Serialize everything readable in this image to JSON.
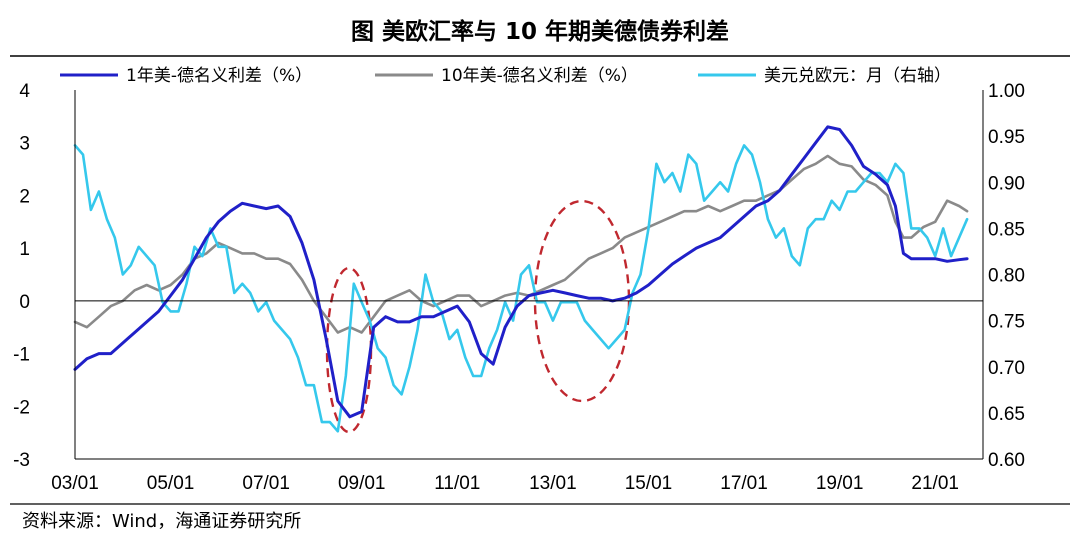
{
  "chart_data": {
    "type": "line",
    "title": "图  美欧汇率与 10 年期美德债券利差",
    "source": "资料来源：Wind，海通证券研究所",
    "x_tick_labels": [
      "03/01",
      "05/01",
      "07/01",
      "09/01",
      "11/01",
      "13/01",
      "15/01",
      "17/01",
      "19/01",
      "21/01"
    ],
    "x_range": [
      "2003-01",
      "2022-01"
    ],
    "left_axis": {
      "min": -3,
      "max": 4,
      "ticks": [
        4,
        3,
        2,
        1,
        0,
        -1,
        -2,
        -3
      ]
    },
    "right_axis": {
      "min": 0.6,
      "max": 1.0,
      "ticks": [
        "1.00",
        "0.95",
        "0.90",
        "0.85",
        "0.80",
        "0.75",
        "0.70",
        "0.65",
        "0.60"
      ]
    },
    "legend_position": "top",
    "series": [
      {
        "name": "1年美-德名义利差（%）",
        "axis": "left",
        "color": "#2020c8",
        "points": [
          [
            "2003-01",
            -1.3
          ],
          [
            "2003-04",
            -1.1
          ],
          [
            "2003-07",
            -1.0
          ],
          [
            "2003-10",
            -1.0
          ],
          [
            "2004-01",
            -0.8
          ],
          [
            "2004-04",
            -0.6
          ],
          [
            "2004-07",
            -0.4
          ],
          [
            "2004-10",
            -0.2
          ],
          [
            "2005-01",
            0.1
          ],
          [
            "2005-04",
            0.4
          ],
          [
            "2005-07",
            0.8
          ],
          [
            "2005-10",
            1.2
          ],
          [
            "2006-01",
            1.5
          ],
          [
            "2006-04",
            1.7
          ],
          [
            "2006-07",
            1.85
          ],
          [
            "2006-10",
            1.8
          ],
          [
            "2007-01",
            1.75
          ],
          [
            "2007-04",
            1.8
          ],
          [
            "2007-07",
            1.6
          ],
          [
            "2007-10",
            1.1
          ],
          [
            "2008-01",
            0.4
          ],
          [
            "2008-04",
            -0.7
          ],
          [
            "2008-07",
            -1.9
          ],
          [
            "2008-10",
            -2.2
          ],
          [
            "2009-01",
            -2.1
          ],
          [
            "2009-04",
            -0.5
          ],
          [
            "2009-07",
            -0.3
          ],
          [
            "2009-10",
            -0.4
          ],
          [
            "2010-01",
            -0.4
          ],
          [
            "2010-04",
            -0.3
          ],
          [
            "2010-07",
            -0.3
          ],
          [
            "2010-10",
            -0.2
          ],
          [
            "2011-01",
            -0.1
          ],
          [
            "2011-04",
            -0.4
          ],
          [
            "2011-07",
            -1.0
          ],
          [
            "2011-10",
            -1.2
          ],
          [
            "2012-01",
            -0.5
          ],
          [
            "2012-04",
            -0.1
          ],
          [
            "2012-07",
            0.1
          ],
          [
            "2012-10",
            0.15
          ],
          [
            "2013-01",
            0.2
          ],
          [
            "2013-04",
            0.15
          ],
          [
            "2013-07",
            0.1
          ],
          [
            "2013-10",
            0.05
          ],
          [
            "2014-01",
            0.05
          ],
          [
            "2014-04",
            0.0
          ],
          [
            "2014-07",
            0.05
          ],
          [
            "2014-10",
            0.15
          ],
          [
            "2015-01",
            0.3
          ],
          [
            "2015-04",
            0.5
          ],
          [
            "2015-07",
            0.7
          ],
          [
            "2015-10",
            0.85
          ],
          [
            "2016-01",
            1.0
          ],
          [
            "2016-04",
            1.1
          ],
          [
            "2016-07",
            1.2
          ],
          [
            "2016-10",
            1.4
          ],
          [
            "2017-01",
            1.6
          ],
          [
            "2017-04",
            1.8
          ],
          [
            "2017-07",
            1.9
          ],
          [
            "2017-10",
            2.1
          ],
          [
            "2018-01",
            2.4
          ],
          [
            "2018-04",
            2.7
          ],
          [
            "2018-07",
            3.0
          ],
          [
            "2018-10",
            3.3
          ],
          [
            "2019-01",
            3.25
          ],
          [
            "2019-04",
            2.95
          ],
          [
            "2019-07",
            2.55
          ],
          [
            "2019-10",
            2.4
          ],
          [
            "2020-01",
            2.2
          ],
          [
            "2020-03",
            1.8
          ],
          [
            "2020-05",
            0.9
          ],
          [
            "2020-07",
            0.8
          ],
          [
            "2020-10",
            0.8
          ],
          [
            "2021-01",
            0.8
          ],
          [
            "2021-04",
            0.75
          ],
          [
            "2021-07",
            0.78
          ],
          [
            "2021-09",
            0.8
          ]
        ]
      },
      {
        "name": "10年美-德名义利差（%）",
        "axis": "left",
        "color": "#8a8a8a",
        "points": [
          [
            "2003-01",
            -0.4
          ],
          [
            "2003-04",
            -0.5
          ],
          [
            "2003-07",
            -0.3
          ],
          [
            "2003-10",
            -0.1
          ],
          [
            "2004-01",
            0.0
          ],
          [
            "2004-04",
            0.2
          ],
          [
            "2004-07",
            0.3
          ],
          [
            "2004-10",
            0.2
          ],
          [
            "2005-01",
            0.3
          ],
          [
            "2005-04",
            0.5
          ],
          [
            "2005-07",
            0.8
          ],
          [
            "2005-10",
            0.9
          ],
          [
            "2006-01",
            1.1
          ],
          [
            "2006-04",
            1.0
          ],
          [
            "2006-07",
            0.9
          ],
          [
            "2006-10",
            0.9
          ],
          [
            "2007-01",
            0.8
          ],
          [
            "2007-04",
            0.8
          ],
          [
            "2007-07",
            0.7
          ],
          [
            "2007-10",
            0.4
          ],
          [
            "2008-01",
            0.0
          ],
          [
            "2008-04",
            -0.3
          ],
          [
            "2008-07",
            -0.6
          ],
          [
            "2008-10",
            -0.5
          ],
          [
            "2009-01",
            -0.6
          ],
          [
            "2009-04",
            -0.3
          ],
          [
            "2009-07",
            0.0
          ],
          [
            "2009-10",
            0.1
          ],
          [
            "2010-01",
            0.2
          ],
          [
            "2010-04",
            0.0
          ],
          [
            "2010-07",
            -0.1
          ],
          [
            "2010-10",
            0.0
          ],
          [
            "2011-01",
            0.1
          ],
          [
            "2011-04",
            0.1
          ],
          [
            "2011-07",
            -0.1
          ],
          [
            "2011-10",
            0.0
          ],
          [
            "2012-01",
            0.1
          ],
          [
            "2012-04",
            0.15
          ],
          [
            "2012-07",
            0.1
          ],
          [
            "2012-10",
            0.2
          ],
          [
            "2013-01",
            0.3
          ],
          [
            "2013-04",
            0.4
          ],
          [
            "2013-07",
            0.6
          ],
          [
            "2013-10",
            0.8
          ],
          [
            "2014-01",
            0.9
          ],
          [
            "2014-04",
            1.0
          ],
          [
            "2014-07",
            1.2
          ],
          [
            "2014-10",
            1.3
          ],
          [
            "2015-01",
            1.4
          ],
          [
            "2015-04",
            1.5
          ],
          [
            "2015-07",
            1.6
          ],
          [
            "2015-10",
            1.7
          ],
          [
            "2016-01",
            1.7
          ],
          [
            "2016-04",
            1.8
          ],
          [
            "2016-07",
            1.7
          ],
          [
            "2016-10",
            1.8
          ],
          [
            "2017-01",
            1.9
          ],
          [
            "2017-04",
            1.9
          ],
          [
            "2017-07",
            2.0
          ],
          [
            "2017-10",
            2.1
          ],
          [
            "2018-01",
            2.3
          ],
          [
            "2018-04",
            2.5
          ],
          [
            "2018-07",
            2.6
          ],
          [
            "2018-10",
            2.75
          ],
          [
            "2019-01",
            2.6
          ],
          [
            "2019-04",
            2.55
          ],
          [
            "2019-07",
            2.3
          ],
          [
            "2019-10",
            2.2
          ],
          [
            "2020-01",
            2.0
          ],
          [
            "2020-03",
            1.5
          ],
          [
            "2020-05",
            1.2
          ],
          [
            "2020-07",
            1.2
          ],
          [
            "2020-10",
            1.4
          ],
          [
            "2021-01",
            1.5
          ],
          [
            "2021-04",
            1.9
          ],
          [
            "2021-07",
            1.8
          ],
          [
            "2021-09",
            1.7
          ]
        ]
      },
      {
        "name": "美元兑欧元：月（右轴）",
        "axis": "right",
        "color": "#35c8ec",
        "points": [
          [
            "2003-01",
            0.94
          ],
          [
            "2003-03",
            0.93
          ],
          [
            "2003-05",
            0.87
          ],
          [
            "2003-07",
            0.89
          ],
          [
            "2003-09",
            0.86
          ],
          [
            "2003-11",
            0.84
          ],
          [
            "2004-01",
            0.8
          ],
          [
            "2004-03",
            0.81
          ],
          [
            "2004-05",
            0.83
          ],
          [
            "2004-07",
            0.82
          ],
          [
            "2004-09",
            0.81
          ],
          [
            "2004-11",
            0.77
          ],
          [
            "2005-01",
            0.76
          ],
          [
            "2005-03",
            0.76
          ],
          [
            "2005-05",
            0.79
          ],
          [
            "2005-07",
            0.83
          ],
          [
            "2005-09",
            0.82
          ],
          [
            "2005-11",
            0.85
          ],
          [
            "2006-01",
            0.83
          ],
          [
            "2006-03",
            0.83
          ],
          [
            "2006-05",
            0.78
          ],
          [
            "2006-07",
            0.79
          ],
          [
            "2006-09",
            0.78
          ],
          [
            "2006-11",
            0.76
          ],
          [
            "2007-01",
            0.77
          ],
          [
            "2007-03",
            0.75
          ],
          [
            "2007-05",
            0.74
          ],
          [
            "2007-07",
            0.73
          ],
          [
            "2007-09",
            0.71
          ],
          [
            "2007-11",
            0.68
          ],
          [
            "2008-01",
            0.68
          ],
          [
            "2008-03",
            0.64
          ],
          [
            "2008-05",
            0.64
          ],
          [
            "2008-07",
            0.63
          ],
          [
            "2008-09",
            0.69
          ],
          [
            "2008-11",
            0.79
          ],
          [
            "2009-01",
            0.77
          ],
          [
            "2009-03",
            0.75
          ],
          [
            "2009-05",
            0.72
          ],
          [
            "2009-07",
            0.71
          ],
          [
            "2009-09",
            0.68
          ],
          [
            "2009-11",
            0.67
          ],
          [
            "2010-01",
            0.7
          ],
          [
            "2010-03",
            0.74
          ],
          [
            "2010-05",
            0.8
          ],
          [
            "2010-07",
            0.77
          ],
          [
            "2010-09",
            0.76
          ],
          [
            "2010-11",
            0.73
          ],
          [
            "2011-01",
            0.74
          ],
          [
            "2011-03",
            0.71
          ],
          [
            "2011-05",
            0.69
          ],
          [
            "2011-07",
            0.69
          ],
          [
            "2011-09",
            0.72
          ],
          [
            "2011-11",
            0.74
          ],
          [
            "2012-01",
            0.77
          ],
          [
            "2012-03",
            0.75
          ],
          [
            "2012-05",
            0.8
          ],
          [
            "2012-07",
            0.81
          ],
          [
            "2012-09",
            0.77
          ],
          [
            "2012-11",
            0.77
          ],
          [
            "2013-01",
            0.75
          ],
          [
            "2013-03",
            0.77
          ],
          [
            "2013-05",
            0.77
          ],
          [
            "2013-07",
            0.77
          ],
          [
            "2013-09",
            0.75
          ],
          [
            "2013-11",
            0.74
          ],
          [
            "2014-01",
            0.73
          ],
          [
            "2014-03",
            0.72
          ],
          [
            "2014-05",
            0.73
          ],
          [
            "2014-07",
            0.74
          ],
          [
            "2014-09",
            0.78
          ],
          [
            "2014-11",
            0.8
          ],
          [
            "2015-01",
            0.85
          ],
          [
            "2015-03",
            0.92
          ],
          [
            "2015-05",
            0.9
          ],
          [
            "2015-07",
            0.91
          ],
          [
            "2015-09",
            0.89
          ],
          [
            "2015-11",
            0.93
          ],
          [
            "2016-01",
            0.92
          ],
          [
            "2016-03",
            0.88
          ],
          [
            "2016-05",
            0.89
          ],
          [
            "2016-07",
            0.9
          ],
          [
            "2016-09",
            0.89
          ],
          [
            "2016-11",
            0.92
          ],
          [
            "2017-01",
            0.94
          ],
          [
            "2017-03",
            0.93
          ],
          [
            "2017-05",
            0.9
          ],
          [
            "2017-07",
            0.86
          ],
          [
            "2017-09",
            0.84
          ],
          [
            "2017-11",
            0.85
          ],
          [
            "2018-01",
            0.82
          ],
          [
            "2018-03",
            0.81
          ],
          [
            "2018-05",
            0.85
          ],
          [
            "2018-07",
            0.86
          ],
          [
            "2018-09",
            0.86
          ],
          [
            "2018-11",
            0.88
          ],
          [
            "2019-01",
            0.87
          ],
          [
            "2019-03",
            0.89
          ],
          [
            "2019-05",
            0.89
          ],
          [
            "2019-07",
            0.9
          ],
          [
            "2019-09",
            0.91
          ],
          [
            "2019-11",
            0.91
          ],
          [
            "2020-01",
            0.9
          ],
          [
            "2020-03",
            0.92
          ],
          [
            "2020-05",
            0.91
          ],
          [
            "2020-07",
            0.85
          ],
          [
            "2020-09",
            0.85
          ],
          [
            "2020-11",
            0.84
          ],
          [
            "2021-01",
            0.82
          ],
          [
            "2021-03",
            0.85
          ],
          [
            "2021-05",
            0.82
          ],
          [
            "2021-07",
            0.84
          ],
          [
            "2021-09",
            0.86
          ]
        ]
      }
    ],
    "annotations": [
      {
        "type": "dashed-ellipse",
        "color": "#c0282f",
        "around": "2008–2009"
      },
      {
        "type": "dashed-ellipse",
        "color": "#c0282f",
        "around": "2013–2014"
      }
    ]
  }
}
